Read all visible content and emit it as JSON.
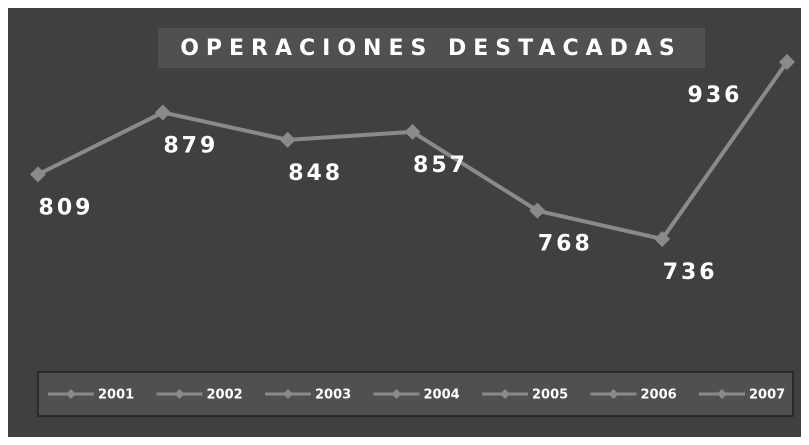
{
  "chart_data": {
    "type": "line",
    "title": "OPERACIONES DESTACADAS",
    "categories": [
      "2001",
      "2002",
      "2003",
      "2004",
      "2005",
      "2006",
      "2007"
    ],
    "values": [
      809,
      879,
      848,
      857,
      768,
      736,
      936
    ],
    "color": "#8a8a8a",
    "legend": "bottom"
  }
}
